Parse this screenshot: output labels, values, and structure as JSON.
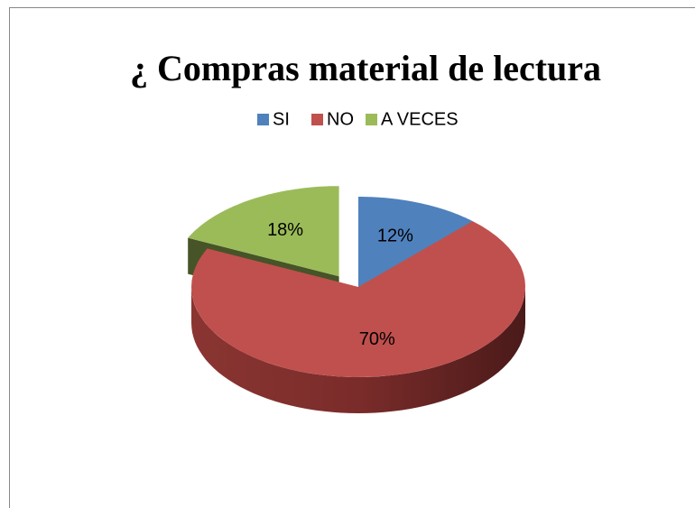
{
  "chart_data": {
    "type": "pie",
    "title": "¿ Compras material de lectura",
    "categories": [
      "SI",
      "NO",
      "A VECES"
    ],
    "values": [
      12,
      70,
      18
    ],
    "value_labels": [
      "12%",
      "70%",
      "18%"
    ],
    "colors": [
      "#4f81bd",
      "#c0504d",
      "#9bbb59"
    ],
    "legend": "top"
  }
}
